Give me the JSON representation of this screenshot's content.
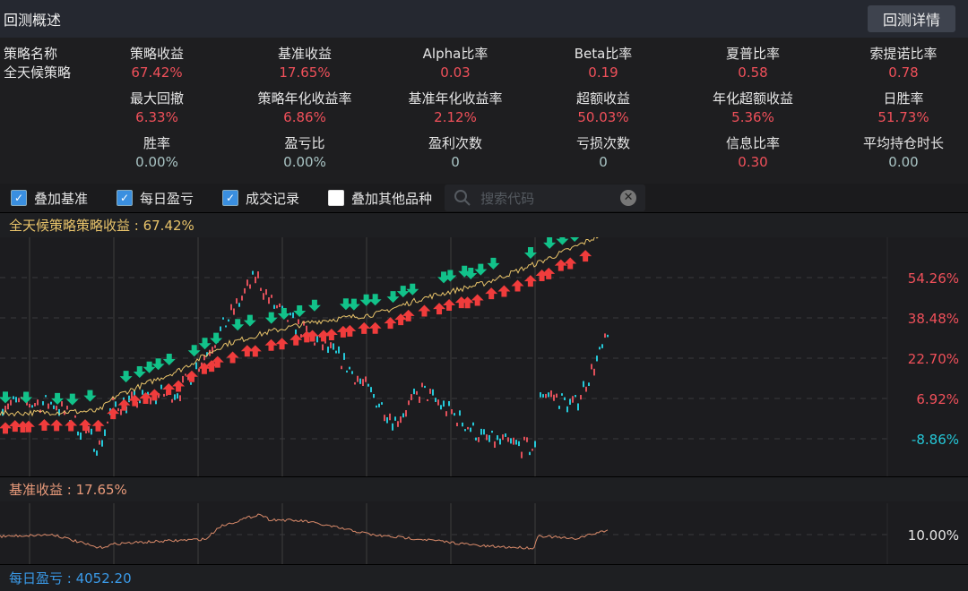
{
  "title": "回测概述",
  "detail_button": "回测详情",
  "strategy": {
    "label": "策略名称",
    "value": "全天候策略"
  },
  "metrics": [
    {
      "label": "策略收益",
      "value": "67.42%",
      "color": "red"
    },
    {
      "label": "基准收益",
      "value": "17.65%",
      "color": "red"
    },
    {
      "label": "Alpha比率",
      "value": "0.03",
      "color": "red"
    },
    {
      "label": "Beta比率",
      "value": "0.19",
      "color": "red"
    },
    {
      "label": "夏普比率",
      "value": "0.58",
      "color": "red"
    },
    {
      "label": "索提诺比率",
      "value": "0.78",
      "color": "red"
    },
    {
      "label": "最大回撤",
      "value": "6.33%",
      "color": "red"
    },
    {
      "label": "策略年化收益率",
      "value": "6.86%",
      "color": "red"
    },
    {
      "label": "基准年化收益率",
      "value": "2.12%",
      "color": "red"
    },
    {
      "label": "超额收益",
      "value": "50.03%",
      "color": "red"
    },
    {
      "label": "年化超额收益",
      "value": "5.36%",
      "color": "red"
    },
    {
      "label": "日胜率",
      "value": "51.73%",
      "color": "red"
    },
    {
      "label": "胜率",
      "value": "0.00%",
      "color": "neutral"
    },
    {
      "label": "盈亏比",
      "value": "0.00%",
      "color": "neutral"
    },
    {
      "label": "盈利次数",
      "value": "0",
      "color": "neutral"
    },
    {
      "label": "亏损次数",
      "value": "0",
      "color": "neutral"
    },
    {
      "label": "信息比率",
      "value": "0.30",
      "color": "red"
    },
    {
      "label": "平均持仓时长",
      "value": "0.00",
      "color": "neutral"
    }
  ],
  "controls": {
    "overlay_benchmark": {
      "label": "叠加基准",
      "checked": true
    },
    "daily_pnl": {
      "label": "每日盈亏",
      "checked": true
    },
    "trades": {
      "label": "成交记录",
      "checked": true
    },
    "overlay_other": {
      "label": "叠加其他品种",
      "checked": false
    },
    "search_placeholder": "搜索代码"
  },
  "colors": {
    "up": "#f03c3c",
    "down": "#12c28a",
    "strategy_line": "#e8c36a",
    "benchmark_line": "#d98a6a",
    "candle_up": "#e0505a",
    "candle_down": "#25c8d8",
    "red_value": "#f0505a",
    "header_yellow": "#e8c36a",
    "header_orange": "#e89a7a",
    "header_blue": "#3a9ae8"
  },
  "main_chart": {
    "header": "全天候策略策略收益 : 67.42%",
    "y_ticks": [
      "54.26%",
      "38.48%",
      "22.70%",
      "6.92%",
      "-8.86%"
    ],
    "y_tick_values": [
      54.26,
      38.48,
      22.7,
      6.92,
      -8.86
    ]
  },
  "benchmark_chart": {
    "header": "基准收益 : 17.65%",
    "y_ticks": [
      "10.00%"
    ]
  },
  "daily_pnl": {
    "header": "每日盈亏 : 4052.20"
  }
}
